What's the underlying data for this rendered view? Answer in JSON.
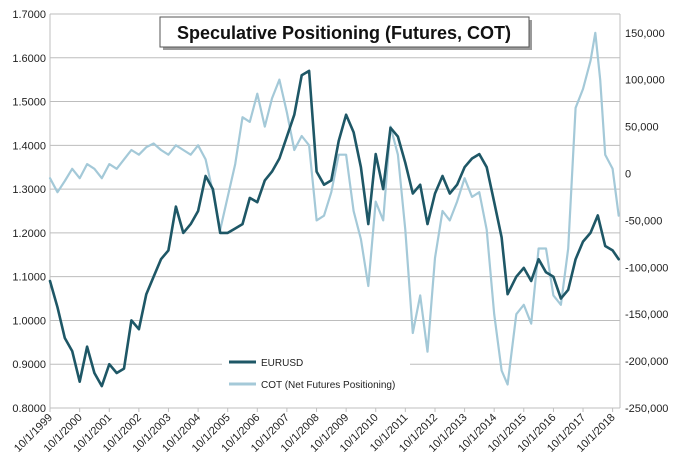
{
  "chart_data": {
    "type": "line",
    "title": "Speculative Positioning (Futures, COT)",
    "xlabel": "",
    "ylabel": "",
    "x_ticks": [
      "10/1/1999",
      "10/1/2000",
      "10/1/2001",
      "10/1/2002",
      "10/1/2003",
      "10/1/2004",
      "10/1/2005",
      "10/1/2006",
      "10/1/2007",
      "10/1/2008",
      "10/1/2009",
      "10/1/2010",
      "10/1/2011",
      "10/1/2012",
      "10/1/2013",
      "10/1/2014",
      "10/1/2015",
      "10/1/2016",
      "10/1/2017",
      "10/1/2018"
    ],
    "y_left_ticks": [
      "0.8000",
      "0.9000",
      "1.0000",
      "1.1000",
      "1.2000",
      "1.3000",
      "1.4000",
      "1.5000",
      "1.6000",
      "1.7000"
    ],
    "y_left_range": [
      0.8,
      1.7
    ],
    "y_right_ticks": [
      "-250,000",
      "-200,000",
      "-150,000",
      "-100,000",
      "-50,000",
      "0",
      "50,000",
      "100,000",
      "150,000"
    ],
    "y_right_range": [
      -250000,
      170000
    ],
    "x_range": [
      "1999-10-01",
      "2018-12-31"
    ],
    "grid": "horizontal",
    "legend_position": "bottom-center",
    "series": [
      {
        "name": "EURUSD",
        "axis": "left",
        "color": "#1e5766",
        "points": [
          [
            "1999-10-01",
            1.09
          ],
          [
            "2000-01-01",
            1.03
          ],
          [
            "2000-04-01",
            0.96
          ],
          [
            "2000-07-01",
            0.93
          ],
          [
            "2000-10-01",
            0.86
          ],
          [
            "2001-01-01",
            0.94
          ],
          [
            "2001-04-01",
            0.88
          ],
          [
            "2001-07-01",
            0.85
          ],
          [
            "2001-10-01",
            0.9
          ],
          [
            "2002-01-01",
            0.88
          ],
          [
            "2002-04-01",
            0.89
          ],
          [
            "2002-07-01",
            1.0
          ],
          [
            "2002-10-01",
            0.98
          ],
          [
            "2003-01-01",
            1.06
          ],
          [
            "2003-04-01",
            1.1
          ],
          [
            "2003-07-01",
            1.14
          ],
          [
            "2003-10-01",
            1.16
          ],
          [
            "2004-01-01",
            1.26
          ],
          [
            "2004-04-01",
            1.2
          ],
          [
            "2004-07-01",
            1.22
          ],
          [
            "2004-10-01",
            1.25
          ],
          [
            "2005-01-01",
            1.33
          ],
          [
            "2005-04-01",
            1.3
          ],
          [
            "2005-07-01",
            1.2
          ],
          [
            "2005-10-01",
            1.2
          ],
          [
            "2006-01-01",
            1.21
          ],
          [
            "2006-04-01",
            1.22
          ],
          [
            "2006-07-01",
            1.28
          ],
          [
            "2006-10-01",
            1.27
          ],
          [
            "2007-01-01",
            1.32
          ],
          [
            "2007-04-01",
            1.34
          ],
          [
            "2007-07-01",
            1.37
          ],
          [
            "2007-10-01",
            1.42
          ],
          [
            "2008-01-01",
            1.47
          ],
          [
            "2008-04-01",
            1.56
          ],
          [
            "2008-07-01",
            1.57
          ],
          [
            "2008-10-01",
            1.34
          ],
          [
            "2009-01-01",
            1.31
          ],
          [
            "2009-04-01",
            1.32
          ],
          [
            "2009-07-01",
            1.41
          ],
          [
            "2009-10-01",
            1.47
          ],
          [
            "2010-01-01",
            1.43
          ],
          [
            "2010-04-01",
            1.35
          ],
          [
            "2010-07-01",
            1.22
          ],
          [
            "2010-10-01",
            1.38
          ],
          [
            "2011-01-01",
            1.3
          ],
          [
            "2011-04-01",
            1.44
          ],
          [
            "2011-07-01",
            1.42
          ],
          [
            "2011-10-01",
            1.36
          ],
          [
            "2012-01-01",
            1.29
          ],
          [
            "2012-04-01",
            1.31
          ],
          [
            "2012-07-01",
            1.22
          ],
          [
            "2012-10-01",
            1.29
          ],
          [
            "2013-01-01",
            1.33
          ],
          [
            "2013-04-01",
            1.29
          ],
          [
            "2013-07-01",
            1.31
          ],
          [
            "2013-10-01",
            1.35
          ],
          [
            "2014-01-01",
            1.37
          ],
          [
            "2014-04-01",
            1.38
          ],
          [
            "2014-07-01",
            1.35
          ],
          [
            "2014-10-01",
            1.27
          ],
          [
            "2015-01-01",
            1.19
          ],
          [
            "2015-03-15",
            1.06
          ],
          [
            "2015-07-01",
            1.1
          ],
          [
            "2015-10-01",
            1.12
          ],
          [
            "2016-01-01",
            1.09
          ],
          [
            "2016-04-01",
            1.14
          ],
          [
            "2016-07-01",
            1.11
          ],
          [
            "2016-10-01",
            1.1
          ],
          [
            "2017-01-01",
            1.05
          ],
          [
            "2017-04-01",
            1.07
          ],
          [
            "2017-07-01",
            1.14
          ],
          [
            "2017-10-01",
            1.18
          ],
          [
            "2018-01-01",
            1.2
          ],
          [
            "2018-04-01",
            1.24
          ],
          [
            "2018-07-01",
            1.17
          ],
          [
            "2018-10-01",
            1.16
          ],
          [
            "2018-12-15",
            1.14
          ]
        ]
      },
      {
        "name": "COT (Net Futures Positioning)",
        "axis": "right",
        "color": "#a4c9d8",
        "points": [
          [
            "1999-10-01",
            -5000
          ],
          [
            "2000-01-01",
            -20000
          ],
          [
            "2000-04-01",
            -8000
          ],
          [
            "2000-07-01",
            5000
          ],
          [
            "2000-10-01",
            -5000
          ],
          [
            "2001-01-01",
            10000
          ],
          [
            "2001-04-01",
            5000
          ],
          [
            "2001-07-01",
            -5000
          ],
          [
            "2001-10-01",
            10000
          ],
          [
            "2002-01-01",
            5000
          ],
          [
            "2002-04-01",
            15000
          ],
          [
            "2002-07-01",
            25000
          ],
          [
            "2002-10-01",
            20000
          ],
          [
            "2003-01-01",
            28000
          ],
          [
            "2003-04-01",
            32000
          ],
          [
            "2003-07-01",
            25000
          ],
          [
            "2003-10-01",
            20000
          ],
          [
            "2004-01-01",
            30000
          ],
          [
            "2004-04-01",
            25000
          ],
          [
            "2004-07-01",
            20000
          ],
          [
            "2004-10-01",
            30000
          ],
          [
            "2005-01-01",
            15000
          ],
          [
            "2005-04-01",
            -20000
          ],
          [
            "2005-07-01",
            -60000
          ],
          [
            "2005-10-01",
            -25000
          ],
          [
            "2006-01-01",
            10000
          ],
          [
            "2006-04-01",
            60000
          ],
          [
            "2006-07-01",
            55000
          ],
          [
            "2006-10-01",
            85000
          ],
          [
            "2007-01-01",
            50000
          ],
          [
            "2007-04-01",
            80000
          ],
          [
            "2007-07-01",
            100000
          ],
          [
            "2007-10-01",
            65000
          ],
          [
            "2008-01-01",
            25000
          ],
          [
            "2008-04-01",
            40000
          ],
          [
            "2008-07-01",
            30000
          ],
          [
            "2008-10-01",
            -50000
          ],
          [
            "2009-01-01",
            -45000
          ],
          [
            "2009-04-01",
            -20000
          ],
          [
            "2009-07-01",
            20000
          ],
          [
            "2009-10-01",
            20000
          ],
          [
            "2010-01-01",
            -40000
          ],
          [
            "2010-04-01",
            -70000
          ],
          [
            "2010-07-01",
            -120000
          ],
          [
            "2010-10-01",
            -30000
          ],
          [
            "2011-01-01",
            -50000
          ],
          [
            "2011-04-01",
            50000
          ],
          [
            "2011-07-01",
            20000
          ],
          [
            "2011-10-01",
            -60000
          ],
          [
            "2012-01-01",
            -170000
          ],
          [
            "2012-04-01",
            -130000
          ],
          [
            "2012-07-01",
            -190000
          ],
          [
            "2012-10-01",
            -90000
          ],
          [
            "2013-01-01",
            -40000
          ],
          [
            "2013-04-01",
            -50000
          ],
          [
            "2013-07-01",
            -30000
          ],
          [
            "2013-10-01",
            -5000
          ],
          [
            "2014-01-01",
            -25000
          ],
          [
            "2014-04-01",
            -20000
          ],
          [
            "2014-07-01",
            -60000
          ],
          [
            "2014-10-01",
            -150000
          ],
          [
            "2015-01-01",
            -210000
          ],
          [
            "2015-03-15",
            -225000
          ],
          [
            "2015-07-01",
            -150000
          ],
          [
            "2015-10-01",
            -140000
          ],
          [
            "2016-01-01",
            -160000
          ],
          [
            "2016-04-01",
            -80000
          ],
          [
            "2016-07-01",
            -80000
          ],
          [
            "2016-10-01",
            -130000
          ],
          [
            "2017-01-01",
            -140000
          ],
          [
            "2017-04-01",
            -80000
          ],
          [
            "2017-07-01",
            70000
          ],
          [
            "2017-10-01",
            90000
          ],
          [
            "2018-01-01",
            120000
          ],
          [
            "2018-03-01",
            150000
          ],
          [
            "2018-05-01",
            100000
          ],
          [
            "2018-07-01",
            20000
          ],
          [
            "2018-10-01",
            5000
          ],
          [
            "2018-12-15",
            -45000
          ]
        ]
      }
    ]
  }
}
